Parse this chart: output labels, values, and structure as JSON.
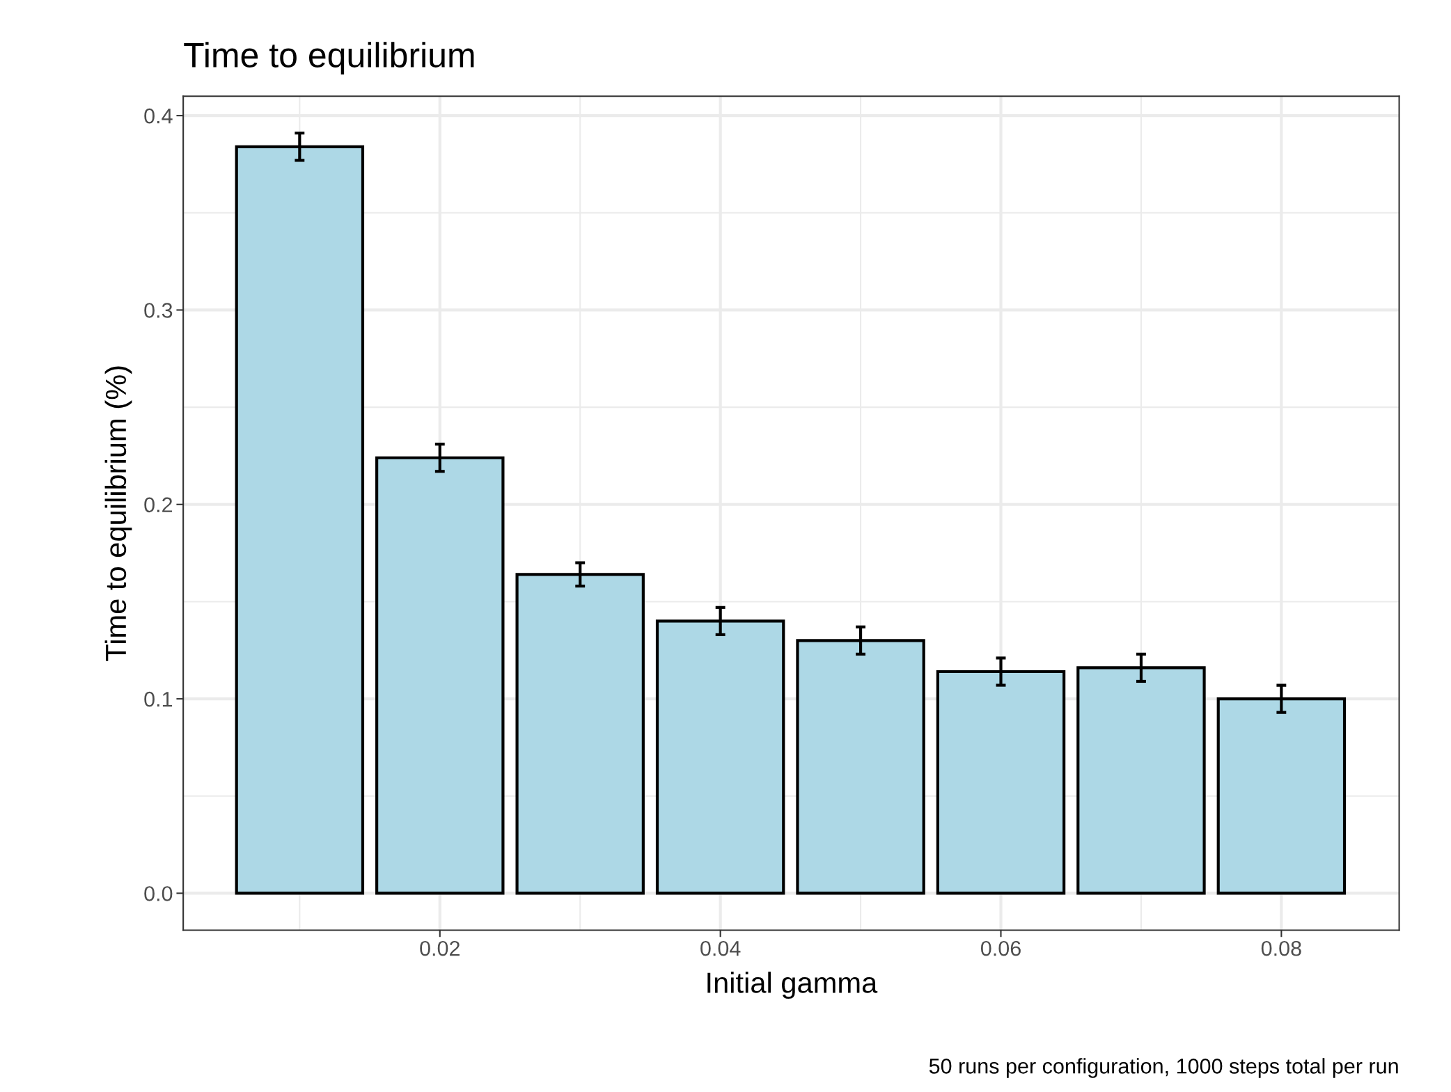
{
  "chart_data": {
    "type": "bar",
    "title": "Time to equilibrium",
    "xlabel": "Initial gamma",
    "ylabel": "Time to equilibrium (%)",
    "x": [
      0.01,
      0.02,
      0.03,
      0.04,
      0.05,
      0.06,
      0.07,
      0.08
    ],
    "values": [
      0.384,
      0.224,
      0.164,
      0.14,
      0.13,
      0.114,
      0.116,
      0.1
    ],
    "errors": [
      0.007,
      0.007,
      0.006,
      0.007,
      0.007,
      0.007,
      0.007,
      0.007
    ],
    "color": "#add8e6",
    "xlim": [
      0.0017,
      0.0884
    ],
    "xticks": [
      0.02,
      0.04,
      0.06,
      0.08
    ],
    "ylim": [
      -0.019,
      0.41
    ],
    "yticks": [
      {
        "value": 0,
        "label": "0.0"
      },
      0.1,
      0.2,
      0.3,
      0.4
    ],
    "grid": true,
    "legend": false,
    "annotations": [
      "50 runs per configuration, 1000 steps total per run"
    ]
  }
}
